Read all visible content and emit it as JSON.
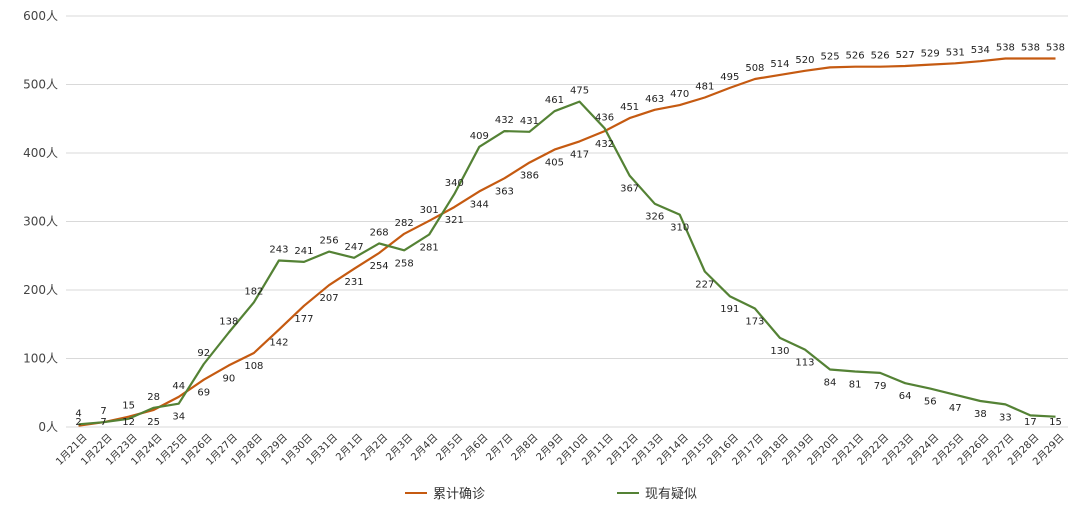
{
  "chart_data": {
    "type": "line",
    "categories": [
      "1月21日",
      "1月22日",
      "1月23日",
      "1月24日",
      "1月25日",
      "1月26日",
      "1月27日",
      "1月28日",
      "1月29日",
      "1月30日",
      "1月31日",
      "2月1日",
      "2月2日",
      "2月3日",
      "2月4日",
      "2月5日",
      "2月6日",
      "2月7日",
      "2月8日",
      "2月9日",
      "2月10日",
      "2月11日",
      "2月12日",
      "2月13日",
      "2月14日",
      "2月15日",
      "2月16日",
      "2月17日",
      "2月18日",
      "2月19日",
      "2月20日",
      "2月21日",
      "2月22日",
      "2月23日",
      "2月24日",
      "2月25日",
      "2月26日",
      "2月27日",
      "2月28日",
      "2月29日"
    ],
    "series": [
      {
        "name": "累计确诊",
        "color": "#c55a11",
        "values": [
          2,
          7,
          15,
          25,
          44,
          69,
          90,
          108,
          142,
          177,
          207,
          231,
          254,
          282,
          301,
          321,
          344,
          363,
          386,
          405,
          417,
          432,
          451,
          463,
          470,
          481,
          495,
          508,
          514,
          520,
          525,
          526,
          526,
          527,
          529,
          531,
          534,
          538,
          538,
          538
        ]
      },
      {
        "name": "现有疑似",
        "color": "#548235",
        "values": [
          4,
          7,
          12,
          28,
          34,
          92,
          138,
          182,
          243,
          241,
          256,
          247,
          268,
          258,
          281,
          340,
          409,
          432,
          431,
          461,
          475,
          436,
          367,
          326,
          310,
          227,
          191,
          173,
          130,
          113,
          84,
          81,
          79,
          64,
          56,
          47,
          38,
          33,
          17,
          15
        ]
      }
    ],
    "yticks": [
      "0人",
      "100人",
      "200人",
      "300人",
      "400人",
      "500人",
      "600人"
    ],
    "ylim": [
      0,
      600
    ],
    "grid": true,
    "legend": "bottom"
  }
}
